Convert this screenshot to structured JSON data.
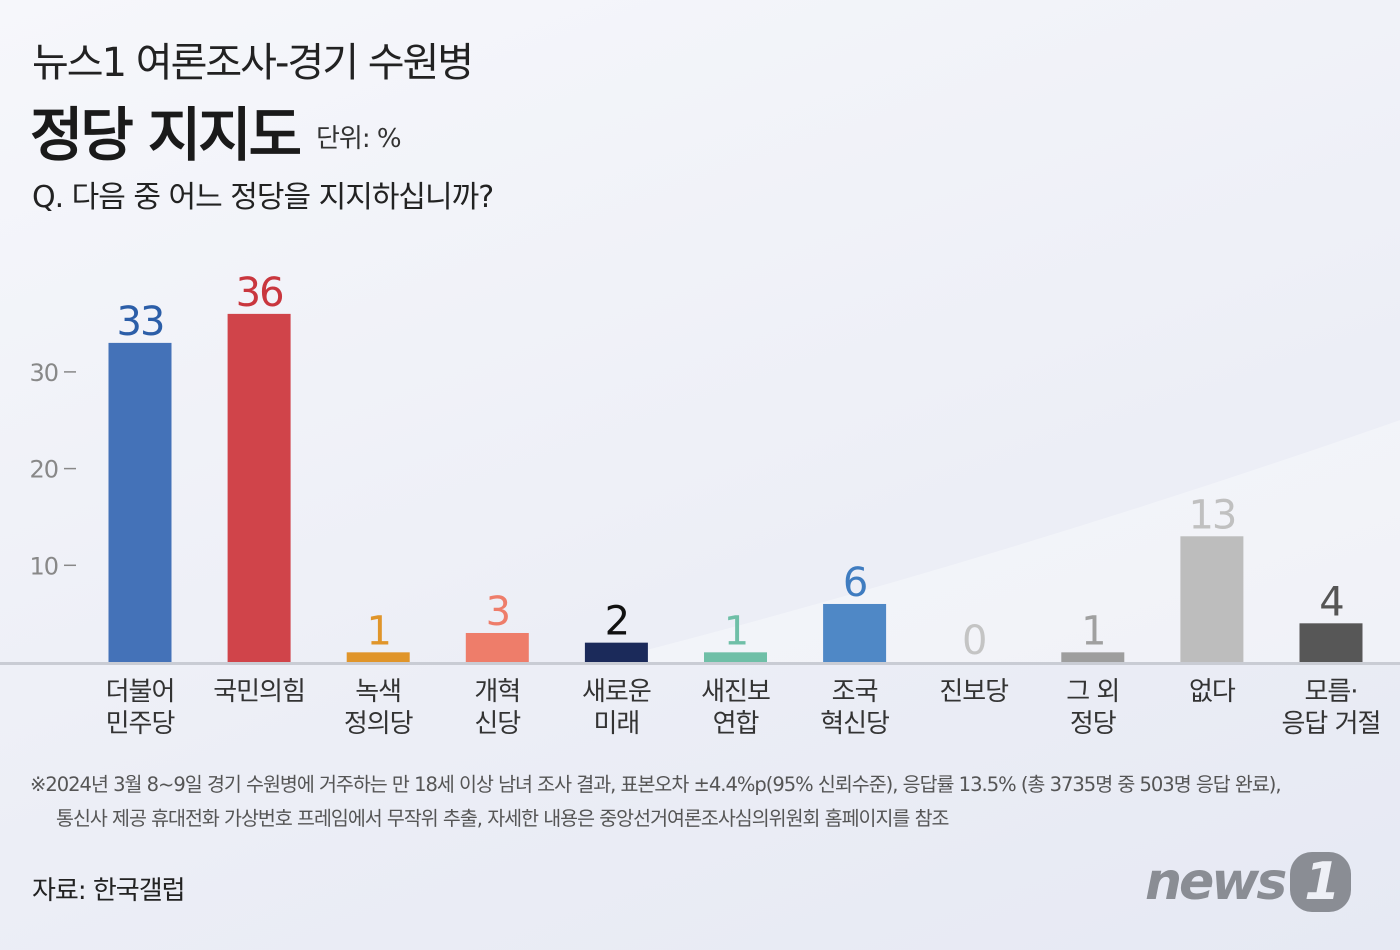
{
  "header": {
    "title": "뉴스1 여론조사-경기 수원병",
    "subtitle": "정당 지지도",
    "unit": "단위: %",
    "question": "Q. 다음 중 어느 정당을 지지하십니까?"
  },
  "chart_data": {
    "type": "bar",
    "title": "정당 지지도",
    "ylabel": "%",
    "ylim": [
      0,
      36
    ],
    "yticks": [
      {
        "v": 10,
        "label": "10"
      },
      {
        "v": 20,
        "label": "20"
      },
      {
        "v": 30,
        "label": "30"
      }
    ],
    "categories": [
      [
        "더불어",
        "민주당"
      ],
      [
        "국민의힘",
        ""
      ],
      [
        "녹색",
        "정의당"
      ],
      [
        "개혁",
        "신당"
      ],
      [
        "새로운",
        "미래"
      ],
      [
        "새진보",
        "연합"
      ],
      [
        "조국",
        "혁신당"
      ],
      [
        "진보당",
        ""
      ],
      [
        "그 외",
        "정당"
      ],
      [
        "없다",
        ""
      ],
      [
        "모름·",
        "응답 거절"
      ]
    ],
    "values": [
      33,
      36,
      1,
      3,
      2,
      1,
      6,
      0,
      1,
      13,
      4
    ],
    "value_labels": [
      "33",
      "36",
      "1",
      "3",
      "2",
      "1",
      "6",
      "0",
      "1",
      "13",
      "4"
    ],
    "colors": [
      "#4472b8",
      "#d0444a",
      "#e0952a",
      "#ee7d6a",
      "#1b2a5a",
      "#6fbfa7",
      "#4f88c6",
      "#9a9a9a",
      "#9e9e9e",
      "#bdbdbd",
      "#575757"
    ],
    "label_colors": [
      "#2c5ea8",
      "#c9363e",
      "#e0952a",
      "#ee7d6a",
      "#111111",
      "#6fbfa7",
      "#3f7cc0",
      "#c4c4c4",
      "#a0a0a0",
      "#c0c0c0",
      "#555555"
    ]
  },
  "footnote": {
    "line1": "※2024년 3월 8~9일 경기 수원병에 거주하는 만 18세 이상 남녀 조사 결과, 표본오차 ±4.4%p(95% 신뢰수준), 응답률 13.5% (총 3735명 중 503명 응답 완료),",
    "line2": "통신사 제공 휴대전화 가상번호 프레임에서 무작위 추출, 자세한 내용은 중앙선거여론조사심의위원회 홈페이지를 참조"
  },
  "source": "자료: 한국갤럽",
  "logo": {
    "text": "news",
    "num": "1"
  }
}
